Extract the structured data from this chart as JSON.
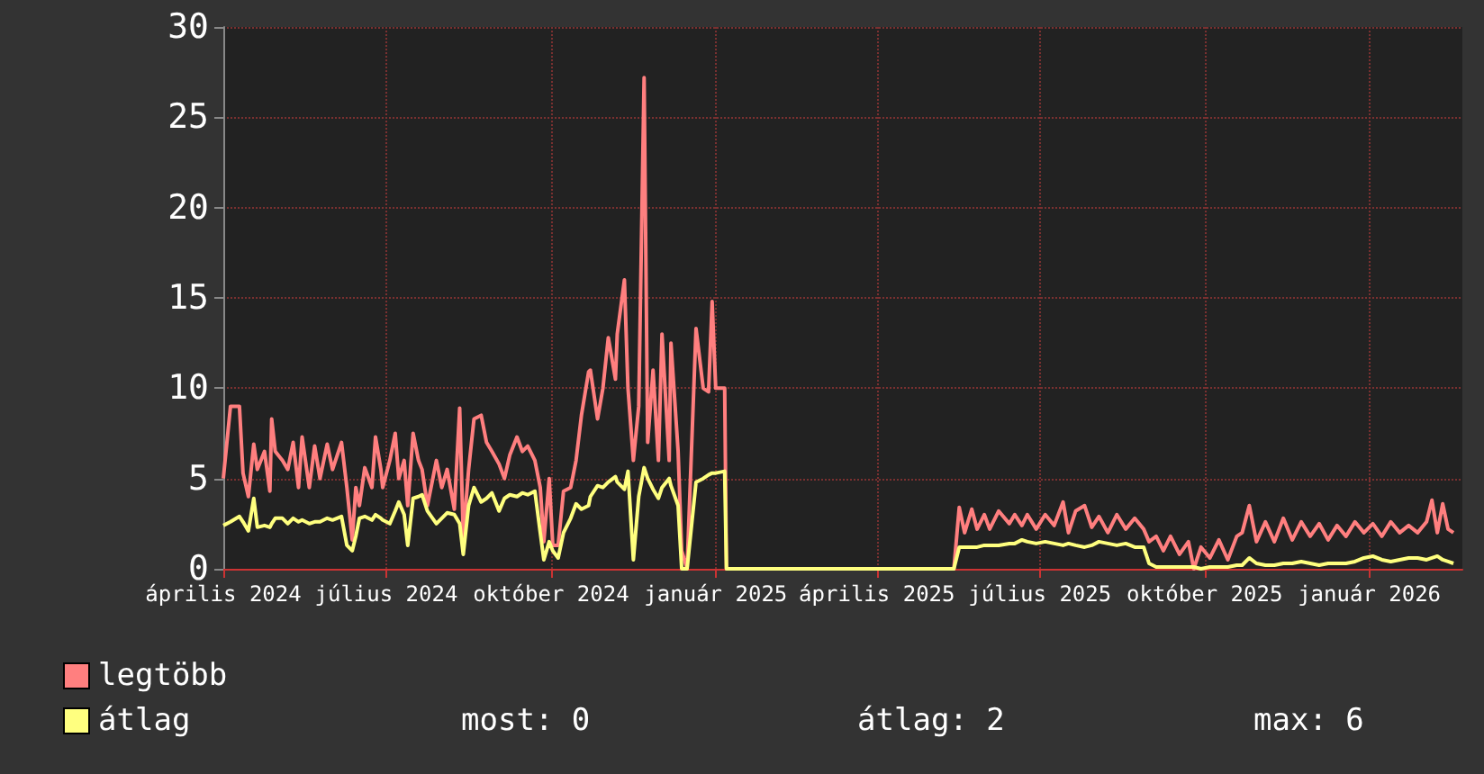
{
  "chart_data": {
    "type": "line",
    "x": [
      "2024-04-01",
      "2024-04-05",
      "2024-04-10",
      "2024-04-12",
      "2024-04-15",
      "2024-04-18",
      "2024-04-20",
      "2024-04-24",
      "2024-04-27",
      "2024-04-28",
      "2024-04-30",
      "2024-05-04",
      "2024-05-07",
      "2024-05-10",
      "2024-05-13",
      "2024-05-15",
      "2024-05-19",
      "2024-05-22",
      "2024-05-25",
      "2024-05-29",
      "2024-06-01",
      "2024-06-06",
      "2024-06-09",
      "2024-06-12",
      "2024-06-14",
      "2024-06-16",
      "2024-06-19",
      "2024-06-23",
      "2024-06-25",
      "2024-06-28",
      "2024-06-29",
      "2024-07-03",
      "2024-07-06",
      "2024-07-08",
      "2024-07-11",
      "2024-07-13",
      "2024-07-16",
      "2024-07-19",
      "2024-07-21",
      "2024-07-24",
      "2024-07-29",
      "2024-08-01",
      "2024-08-04",
      "2024-08-08",
      "2024-08-11",
      "2024-08-13",
      "2024-08-16",
      "2024-08-19",
      "2024-08-23",
      "2024-08-26",
      "2024-08-29",
      "2024-09-02",
      "2024-09-05",
      "2024-09-08",
      "2024-09-12",
      "2024-09-15",
      "2024-09-18",
      "2024-09-22",
      "2024-09-25",
      "2024-09-27",
      "2024-09-30",
      "2024-10-02",
      "2024-10-05",
      "2024-10-08",
      "2024-10-12",
      "2024-10-15",
      "2024-10-18",
      "2024-10-22",
      "2024-10-23",
      "2024-10-27",
      "2024-10-30",
      "2024-11-02",
      "2024-11-06",
      "2024-11-07",
      "2024-11-11",
      "2024-11-13",
      "2024-11-16",
      "2024-11-19",
      "2024-11-22",
      "2024-11-24",
      "2024-11-27",
      "2024-11-30",
      "2024-12-02",
      "2024-12-06",
      "2024-12-07",
      "2024-12-11",
      "2024-12-13",
      "2024-12-16",
      "2024-12-21",
      "2024-12-25",
      "2024-12-28",
      "2024-12-30",
      "2025-01-01",
      "2025-01-06",
      "2025-01-07",
      "2025-03-05",
      "2025-05-14",
      "2025-05-17",
      "2025-05-20",
      "2025-05-24",
      "2025-05-27",
      "2025-05-31",
      "2025-06-03",
      "2025-06-08",
      "2025-06-14",
      "2025-06-17",
      "2025-06-21",
      "2025-06-24",
      "2025-06-29",
      "2025-07-04",
      "2025-07-09",
      "2025-07-14",
      "2025-07-17",
      "2025-07-21",
      "2025-07-26",
      "2025-07-30",
      "2025-08-03",
      "2025-08-08",
      "2025-08-13",
      "2025-08-18",
      "2025-08-23",
      "2025-08-28",
      "2025-08-31",
      "2025-09-04",
      "2025-09-08",
      "2025-09-12",
      "2025-09-17",
      "2025-09-22",
      "2025-09-25",
      "2025-09-29",
      "2025-10-04",
      "2025-10-09",
      "2025-10-14",
      "2025-10-19",
      "2025-10-22",
      "2025-10-26",
      "2025-10-30",
      "2025-11-04",
      "2025-11-09",
      "2025-11-14",
      "2025-11-19",
      "2025-11-24",
      "2025-11-29",
      "2025-12-04",
      "2025-12-09",
      "2025-12-14",
      "2025-12-19",
      "2025-12-24",
      "2025-12-29",
      "2026-01-03",
      "2026-01-08",
      "2026-01-13",
      "2026-01-18",
      "2026-01-23",
      "2026-01-28",
      "2026-02-02",
      "2026-02-05",
      "2026-02-08",
      "2026-02-11",
      "2026-02-14",
      "2026-02-17"
    ],
    "series": [
      {
        "name": "legtöbb",
        "color": "#ff7f7f",
        "values": [
          5.0,
          9.0,
          9.0,
          5.3,
          4.0,
          6.9,
          5.5,
          6.5,
          4.3,
          8.3,
          6.5,
          6.0,
          5.5,
          7.0,
          4.5,
          7.3,
          4.5,
          6.8,
          5.0,
          6.9,
          5.5,
          7.0,
          4.5,
          1.6,
          4.5,
          3.5,
          5.6,
          4.5,
          7.3,
          5.5,
          4.5,
          6.0,
          7.5,
          5.0,
          6.0,
          3.5,
          7.5,
          6.0,
          5.5,
          3.5,
          6.0,
          4.5,
          5.5,
          3.3,
          8.9,
          1.8,
          5.5,
          8.3,
          8.5,
          7.0,
          6.5,
          5.8,
          5.0,
          6.3,
          7.3,
          6.5,
          6.8,
          6.0,
          4.5,
          1.5,
          5.0,
          1.3,
          1.3,
          4.3,
          4.5,
          6.0,
          8.5,
          10.9,
          11.0,
          8.3,
          10.0,
          12.8,
          10.5,
          13.0,
          16.0,
          10.0,
          6.0,
          9.0,
          27.2,
          7.0,
          11.0,
          6.0,
          13.0,
          6.0,
          12.5,
          6.5,
          1.0,
          0,
          13.3,
          10.0,
          9.8,
          14.8,
          10.0,
          10.0,
          0,
          0,
          0,
          3.4,
          2.0,
          3.3,
          2.2,
          3.0,
          2.2,
          3.2,
          2.5,
          3.0,
          2.4,
          3.0,
          2.2,
          3.0,
          2.4,
          3.7,
          2.0,
          3.2,
          3.5,
          2.3,
          2.9,
          2.0,
          3.0,
          2.2,
          2.8,
          2.2,
          1.5,
          1.8,
          1.0,
          1.8,
          0.8,
          1.5,
          0,
          1.2,
          0.6,
          1.6,
          0.5,
          1.8,
          2.0,
          3.5,
          1.5,
          2.6,
          1.5,
          2.8,
          1.6,
          2.6,
          1.8,
          2.5,
          1.6,
          2.4,
          1.8,
          2.6,
          2.0,
          2.5,
          1.8,
          2.6,
          2.0,
          2.4,
          2.0,
          2.6,
          3.8,
          2.0,
          3.6,
          2.2,
          2.0
        ]
      },
      {
        "name": "átlag",
        "color": "#ffff7f",
        "values": [
          2.4,
          2.6,
          2.9,
          2.6,
          2.1,
          3.9,
          2.3,
          2.4,
          2.3,
          2.5,
          2.8,
          2.8,
          2.5,
          2.8,
          2.6,
          2.7,
          2.5,
          2.6,
          2.6,
          2.8,
          2.7,
          2.9,
          1.3,
          1.0,
          1.8,
          2.8,
          2.9,
          2.7,
          3.0,
          2.8,
          2.7,
          2.5,
          3.2,
          3.7,
          3.0,
          1.3,
          3.9,
          4.0,
          4.1,
          3.2,
          2.5,
          2.8,
          3.1,
          3.0,
          2.5,
          0.8,
          3.5,
          4.5,
          3.7,
          3.9,
          4.2,
          3.2,
          3.9,
          4.1,
          4.0,
          4.2,
          4.1,
          4.3,
          2.0,
          0.5,
          1.5,
          1.0,
          0.6,
          2.0,
          2.8,
          3.6,
          3.3,
          3.5,
          4.0,
          4.6,
          4.5,
          4.8,
          5.1,
          4.8,
          4.4,
          5.4,
          0.5,
          4.0,
          5.6,
          5.0,
          4.4,
          3.9,
          4.5,
          5.0,
          4.6,
          3.5,
          0,
          0,
          4.8,
          5.0,
          5.2,
          5.3,
          5.3,
          5.4,
          0,
          0,
          0,
          1.2,
          1.2,
          1.2,
          1.2,
          1.3,
          1.3,
          1.3,
          1.4,
          1.4,
          1.6,
          1.5,
          1.4,
          1.5,
          1.4,
          1.3,
          1.4,
          1.3,
          1.2,
          1.3,
          1.5,
          1.4,
          1.3,
          1.4,
          1.2,
          1.2,
          0.3,
          0.1,
          0.1,
          0.1,
          0.1,
          0.1,
          0.1,
          0,
          0.1,
          0.1,
          0.1,
          0.2,
          0.2,
          0.6,
          0.3,
          0.2,
          0.2,
          0.3,
          0.3,
          0.4,
          0.3,
          0.2,
          0.3,
          0.3,
          0.3,
          0.4,
          0.6,
          0.7,
          0.5,
          0.4,
          0.5,
          0.6,
          0.6,
          0.5,
          0.6,
          0.7,
          0.5,
          0.4,
          0.3
        ]
      }
    ],
    "xlim": [
      "2024-04-01",
      "2026-02-22"
    ],
    "xticks": [
      {
        "value": "2024-04-01",
        "label": "április 2024"
      },
      {
        "value": "2024-07-01",
        "label": "július 2024"
      },
      {
        "value": "2024-10-01",
        "label": "október 2024"
      },
      {
        "value": "2025-01-01",
        "label": "január 2025"
      },
      {
        "value": "2025-04-01",
        "label": "április 2025"
      },
      {
        "value": "2025-07-01",
        "label": "július 2025"
      },
      {
        "value": "2025-10-01",
        "label": "október 2025"
      },
      {
        "value": "2026-01-01",
        "label": "január 2026"
      }
    ],
    "ylim": [
      0,
      30
    ],
    "yticks": [
      0,
      5,
      10,
      15,
      20,
      25,
      30
    ],
    "grid": true,
    "legend": "bottom left",
    "marker": "none",
    "line_style": "solid",
    "annotations": [
      "most: 0",
      "átlag: 2",
      "max: 6"
    ]
  }
}
